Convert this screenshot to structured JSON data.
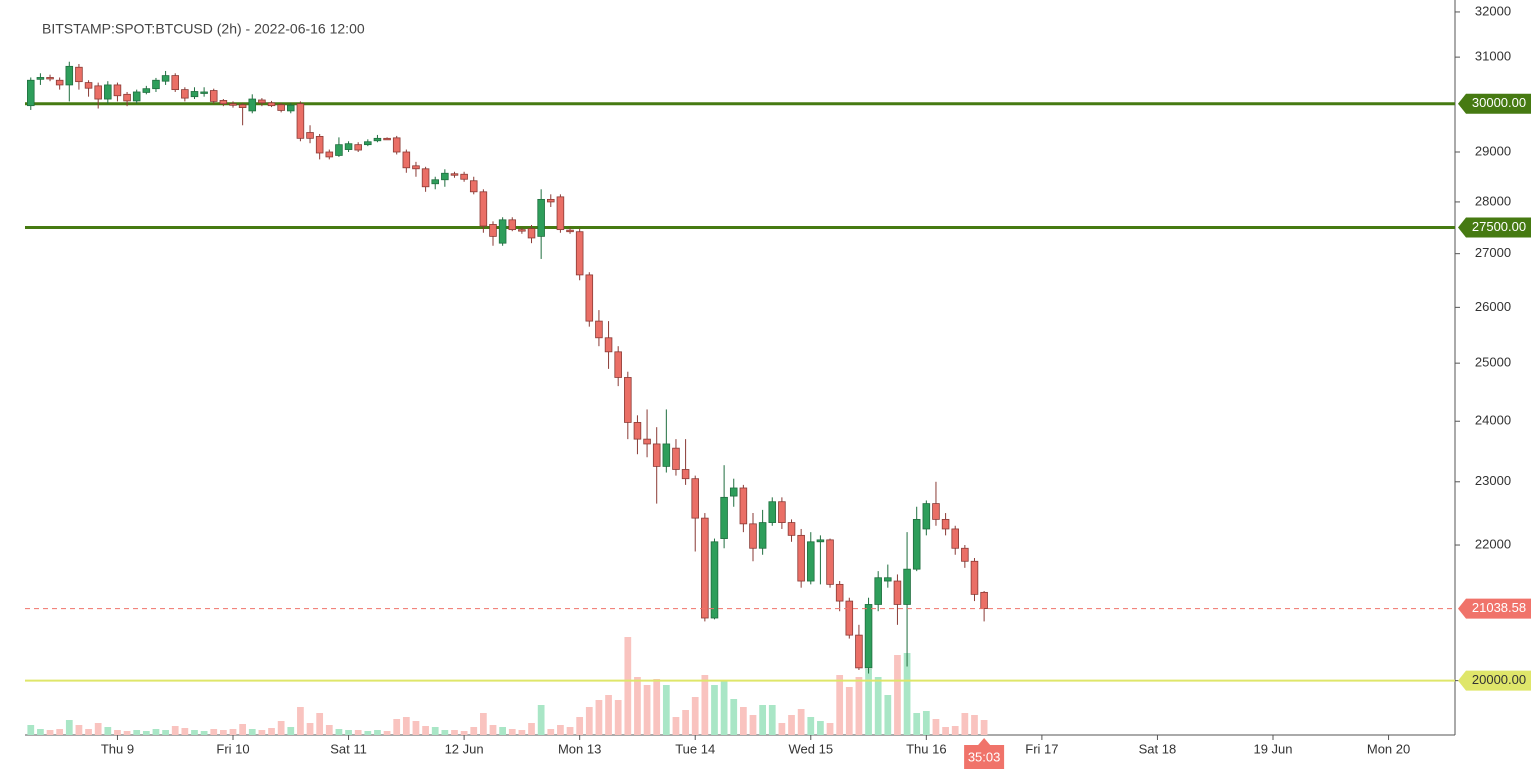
{
  "chart_data": {
    "type": "candlestick",
    "title": "BITSTAMP:SPOT:BTCUSD (2h) - 2022-06-16 12:00",
    "log_scale": true,
    "ylim": [
      19250,
      32270
    ],
    "yticks": [
      20000,
      22000,
      23000,
      24000,
      25000,
      26000,
      27000,
      28000,
      29000,
      31000,
      32000
    ],
    "xlim": [
      -0.6,
      147.9
    ],
    "xticks": [
      {
        "value": 9,
        "label": "Thu 9"
      },
      {
        "value": 21,
        "label": "Fri 10"
      },
      {
        "value": 33,
        "label": "Sat 11"
      },
      {
        "value": 45,
        "label": "12 Jun"
      },
      {
        "value": 57,
        "label": "Mon 13"
      },
      {
        "value": 69,
        "label": "Tue 14"
      },
      {
        "value": 81,
        "label": "Wed 15"
      },
      {
        "value": 93,
        "label": "Thu 16"
      },
      {
        "value": 105,
        "label": "Fri 17"
      },
      {
        "value": 117,
        "label": "Sat 18"
      },
      {
        "value": 129,
        "label": "19 Jun"
      },
      {
        "value": 141,
        "label": "Mon 20"
      }
    ],
    "up_color": "#2e9e5b",
    "down_color": "#ea6f66",
    "up_volume_color": "#a9e6c6",
    "down_volume_color": "#f9c3bf",
    "levels": [
      {
        "value": 30000,
        "label": "30000.00",
        "color": "#467a12"
      },
      {
        "value": 27500,
        "label": "27500.00",
        "color": "#467a12"
      },
      {
        "value": 20000,
        "label": "20000.00",
        "color": "#dfe66a"
      }
    ],
    "last_price_label": "21038.58",
    "last_price_color": "#f0736a",
    "countdown": "35:03",
    "open": [
      29960,
      30520,
      30560,
      30500,
      30400,
      30780,
      30450,
      30380,
      30100,
      30400,
      30200,
      30060,
      30240,
      30320,
      30480,
      30600,
      30300,
      30150,
      30250,
      30280,
      30070,
      30000,
      29980,
      29850,
      30080,
      30020,
      29980,
      29850,
      30000,
      29400,
      29320,
      29000,
      28930,
      29050,
      29150,
      29150,
      29230,
      29280,
      29290,
      29000,
      28720,
      28660,
      28360,
      28440,
      28560,
      28550,
      28420,
      28200,
      27560,
      27200,
      27650,
      27460,
      27480,
      27330,
      28050,
      28100,
      27450,
      27420,
      26600,
      25750,
      25450,
      25200,
      24750,
      23980,
      23700,
      23620,
      23250,
      23550,
      23200,
      23050,
      22420,
      20900,
      22100,
      22770,
      22900,
      22330,
      21950,
      22350,
      22680,
      22350,
      22150,
      21450,
      22050,
      22080,
      21400,
      21150,
      20650,
      20180,
      21100,
      21450,
      21450,
      21100,
      21630,
      22250,
      22650,
      22400,
      22250,
      21950,
      21750,
      21280
    ],
    "high": [
      30560,
      30650,
      30620,
      30560,
      30900,
      30850,
      30500,
      30450,
      30480,
      30450,
      30250,
      30300,
      30380,
      30550,
      30700,
      30650,
      30350,
      30350,
      30350,
      30320,
      30100,
      30050,
      30010,
      30200,
      30120,
      30060,
      30020,
      30020,
      30050,
      29550,
      29370,
      29050,
      29300,
      29220,
      29200,
      29260,
      29350,
      29300,
      29330,
      29050,
      28800,
      28700,
      28500,
      28650,
      28600,
      28600,
      28500,
      28250,
      27620,
      27700,
      27700,
      27500,
      27550,
      28250,
      28150,
      28150,
      27500,
      27480,
      26650,
      25950,
      25750,
      25300,
      24850,
      24100,
      24200,
      23900,
      24200,
      23700,
      23700,
      23100,
      22500,
      22100,
      23270,
      23050,
      22950,
      22500,
      22550,
      22750,
      22750,
      22400,
      22250,
      22200,
      22150,
      22100,
      21450,
      21200,
      20800,
      21200,
      21600,
      21700,
      21550,
      22200,
      22600,
      22700,
      23000,
      22500,
      22300,
      22000,
      21800,
      21300
    ],
    "low": [
      29870,
      30400,
      30480,
      30300,
      30050,
      30300,
      30150,
      29900,
      30000,
      30050,
      29950,
      30000,
      30200,
      30250,
      30400,
      30250,
      30050,
      30100,
      30150,
      30000,
      29950,
      29920,
      29550,
      29800,
      29950,
      29930,
      29820,
      29800,
      29220,
      29180,
      28850,
      28850,
      28900,
      29000,
      29000,
      29120,
      29200,
      29250,
      28950,
      28580,
      28500,
      28200,
      28250,
      28300,
      28480,
      28400,
      28150,
      27400,
      27150,
      27150,
      27430,
      27380,
      27200,
      26900,
      27900,
      27400,
      27380,
      26500,
      25650,
      25300,
      24900,
      24600,
      23700,
      23450,
      23400,
      22650,
      23150,
      23100,
      22950,
      21900,
      20850,
      20880,
      21950,
      22600,
      22200,
      21750,
      21850,
      22300,
      22250,
      22050,
      21350,
      21400,
      21400,
      21350,
      21000,
      20600,
      20150,
      20100,
      21000,
      21350,
      20800,
      20200,
      21600,
      22150,
      22300,
      22150,
      21850,
      21650,
      21150,
      20850
    ],
    "close": [
      30500,
      30560,
      30540,
      30400,
      30800,
      30470,
      30330,
      30100,
      30400,
      30170,
      30060,
      30250,
      30320,
      30500,
      30600,
      30300,
      30120,
      30260,
      30250,
      30050,
      30000,
      29980,
      29920,
      30100,
      30020,
      29960,
      29860,
      29970,
      29280,
      29280,
      28980,
      28900,
      29150,
      29170,
      29040,
      29210,
      29280,
      29270,
      29000,
      28680,
      28660,
      28300,
      28440,
      28570,
      28550,
      28450,
      28200,
      27530,
      27330,
      27650,
      27460,
      27440,
      27300,
      28050,
      28000,
      27460,
      27420,
      26600,
      25750,
      25450,
      25200,
      24750,
      23980,
      23700,
      23620,
      23250,
      23620,
      23200,
      23050,
      22420,
      20900,
      22050,
      22750,
      22900,
      22330,
      21950,
      22350,
      22680,
      22350,
      22150,
      21450,
      22050,
      22080,
      21400,
      21150,
      20650,
      20180,
      21100,
      21500,
      21500,
      21100,
      21630,
      22400,
      22650,
      22400,
      22250,
      21950,
      21750,
      21250,
      21038.58
    ],
    "volume": [
      10,
      6,
      5,
      6,
      15,
      10,
      6,
      12,
      8,
      5,
      4,
      5,
      4,
      6,
      5,
      9,
      7,
      5,
      4,
      6,
      5,
      6,
      11,
      6,
      5,
      7,
      14,
      8,
      28,
      12,
      22,
      10,
      6,
      5,
      5,
      4,
      5,
      4,
      16,
      18,
      14,
      9,
      8,
      5,
      5,
      4,
      8,
      22,
      10,
      8,
      6,
      5,
      12,
      30,
      6,
      10,
      8,
      18,
      28,
      35,
      40,
      35,
      98,
      58,
      50,
      56,
      50,
      18,
      25,
      38,
      60,
      50,
      55,
      36,
      28,
      20,
      30,
      30,
      12,
      20,
      26,
      18,
      14,
      12,
      60,
      48,
      58,
      66,
      58,
      40,
      80,
      82,
      22,
      24,
      16,
      8,
      9,
      22,
      20,
      15
    ]
  }
}
